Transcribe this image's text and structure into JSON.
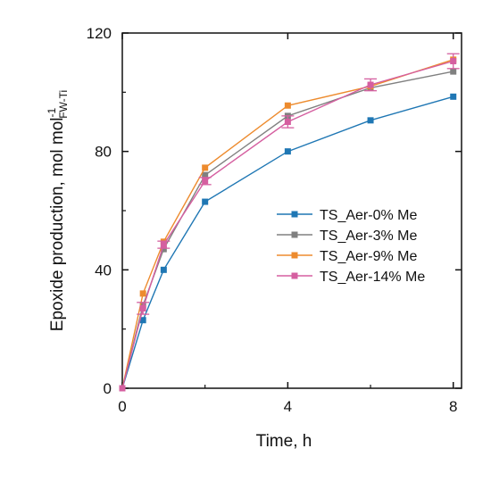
{
  "chart_data": {
    "type": "line",
    "xlabel": "Time, h",
    "ylabel": {
      "main": "Epoxide production, mol mol",
      "superscript": "-1",
      "subscript": "FW-Ti"
    },
    "xlim": [
      0,
      8.2
    ],
    "ylim": [
      0,
      120
    ],
    "xticks": [
      "0",
      "4",
      "8"
    ],
    "yticks": [
      "0",
      "40",
      "80",
      "120"
    ],
    "legend_position": "center-right",
    "series": [
      {
        "name": "TS_Aer-0% Me",
        "color": "#1f77b4",
        "x": [
          0,
          0.5,
          1,
          2,
          4,
          6,
          8
        ],
        "y": [
          0,
          23,
          40,
          63,
          80,
          90.5,
          98.5
        ]
      },
      {
        "name": "TS_Aer-3% Me",
        "color": "#808080",
        "x": [
          0,
          0.5,
          1,
          2,
          4,
          6,
          8
        ],
        "y": [
          0,
          28,
          47,
          72,
          92,
          101.5,
          107
        ]
      },
      {
        "name": "TS_Aer-9% Me",
        "color": "#ed8b2e",
        "x": [
          0,
          0.5,
          1,
          2,
          4,
          6,
          8
        ],
        "y": [
          0,
          32,
          49.5,
          74.5,
          95.5,
          102,
          111
        ]
      },
      {
        "name": "TS_Aer-14% Me",
        "color": "#d55fa0",
        "x": [
          0,
          0.5,
          1,
          2,
          4,
          6,
          8
        ],
        "y": [
          0,
          27,
          48.5,
          70,
          90,
          102.5,
          110.5
        ],
        "error": [
          0,
          2,
          1.2,
          1.2,
          2,
          2,
          2.5
        ]
      }
    ]
  }
}
